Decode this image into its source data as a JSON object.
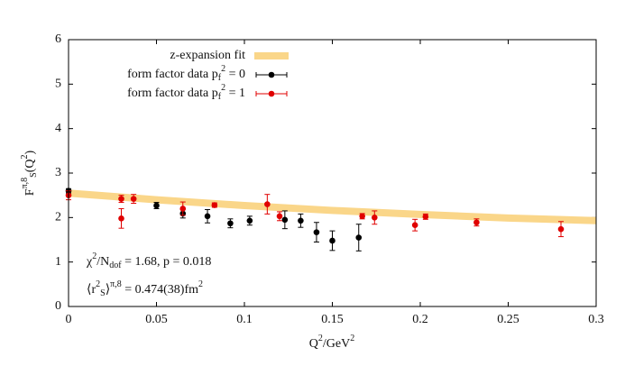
{
  "chart_data": {
    "type": "scatter",
    "xlabel": "Q^2/GeV^2",
    "ylabel": "F^{π,8}_S(Q^2)",
    "xlim": [
      0,
      0.3
    ],
    "ylim": [
      0,
      6
    ],
    "xticks": [
      0,
      0.05,
      0.1,
      0.15,
      0.2,
      0.25,
      0.3
    ],
    "yticks": [
      0,
      1,
      2,
      3,
      4,
      5,
      6
    ],
    "fit": {
      "name": "z-expansion fit",
      "color": "#fad689",
      "x": [
        0,
        0.05,
        0.1,
        0.15,
        0.2,
        0.25,
        0.3
      ],
      "values": [
        2.55,
        2.4,
        2.27,
        2.16,
        2.07,
        1.99,
        1.93
      ]
    },
    "series": [
      {
        "name": "form factor data p_f^2 = 0",
        "color": "#000000",
        "x": [
          0.0,
          0.05,
          0.065,
          0.079,
          0.092,
          0.103,
          0.123,
          0.132,
          0.141,
          0.15,
          0.165
        ],
        "values": [
          2.6,
          2.27,
          2.09,
          2.03,
          1.87,
          1.93,
          1.95,
          1.93,
          1.67,
          1.48,
          1.55
        ],
        "errors": [
          0.05,
          0.07,
          0.1,
          0.15,
          0.1,
          0.1,
          0.2,
          0.15,
          0.22,
          0.22,
          0.3
        ]
      },
      {
        "name": "form factor data p_f^2 = 1",
        "color": "#e00000",
        "x": [
          0.0,
          0.03,
          0.03,
          0.037,
          0.065,
          0.083,
          0.113,
          0.12,
          0.167,
          0.174,
          0.197,
          0.203,
          0.232,
          0.28
        ],
        "values": [
          2.5,
          2.42,
          1.98,
          2.42,
          2.2,
          2.28,
          2.3,
          2.03,
          2.03,
          2.0,
          1.83,
          2.02,
          1.89,
          1.74
        ],
        "errors": [
          0.1,
          0.08,
          0.22,
          0.1,
          0.15,
          0.05,
          0.22,
          0.1,
          0.06,
          0.15,
          0.13,
          0.06,
          0.08,
          0.17
        ]
      }
    ],
    "annotations": [
      "χ^2/N_{dof} = 1.68,  p = 0.018",
      "⟨r^2_S⟩^{π,8} = 0.474(38)fm^2"
    ]
  }
}
